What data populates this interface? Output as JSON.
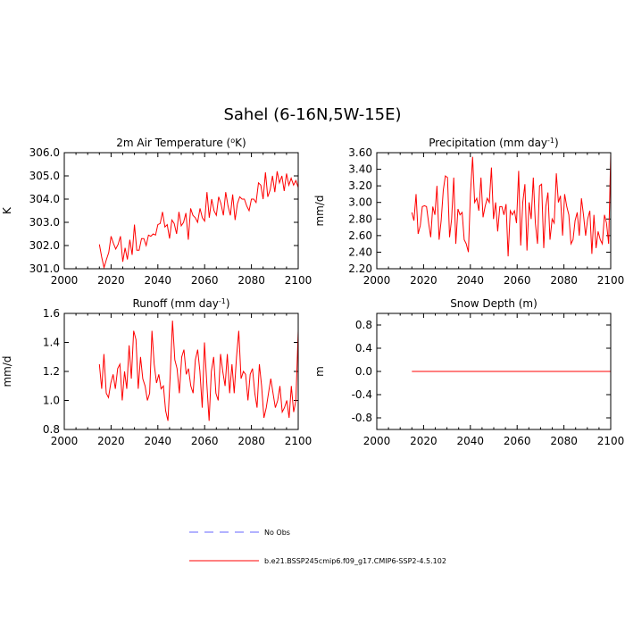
{
  "figure": {
    "title": "Sahel (6-16N,5W-15E)",
    "legend": [
      {
        "label": "No Obs",
        "color": "#6666ff",
        "style": "dashed"
      },
      {
        "label": "b.e21.BSSP245cmip6.f09_g17.CMIP6-SSP2-4.5.102",
        "color": "#ff0000",
        "style": "solid"
      }
    ]
  },
  "chart_data": [
    {
      "type": "line",
      "title": "2m Air Temperature (°K)",
      "title_parts": [
        "2m Air Temperature (",
        "o",
        "K)"
      ],
      "ylabel": "K",
      "xlim": [
        2000,
        2100
      ],
      "ylim": [
        301.0,
        306.0
      ],
      "xticks": [
        "2000",
        "2020",
        "2040",
        "2060",
        "2080",
        "2100"
      ],
      "yticks": [
        "301.0",
        "302.0",
        "303.0",
        "304.0",
        "305.0",
        "306.0"
      ],
      "series": [
        {
          "color": "#ff0000",
          "x_start": 2015,
          "y": [
            302.05,
            301.5,
            301.05,
            301.4,
            301.7,
            302.4,
            302.1,
            301.85,
            302.05,
            302.4,
            301.3,
            301.9,
            301.4,
            302.25,
            301.6,
            302.9,
            301.8,
            301.8,
            302.3,
            302.3,
            302.0,
            302.45,
            302.4,
            302.5,
            302.45,
            302.9,
            302.95,
            303.45,
            302.8,
            302.9,
            302.3,
            303.1,
            302.95,
            302.5,
            303.45,
            302.85,
            303.0,
            303.4,
            302.25,
            303.6,
            303.3,
            303.2,
            303.0,
            303.6,
            303.2,
            303.05,
            304.3,
            303.2,
            304.0,
            303.5,
            303.3,
            304.1,
            303.8,
            303.3,
            304.3,
            303.7,
            303.3,
            304.2,
            303.1,
            303.8,
            304.1,
            304.0,
            304.0,
            303.7,
            303.5,
            304.0,
            304.0,
            303.85,
            304.7,
            304.6,
            304.0,
            305.15,
            304.1,
            304.4,
            305.0,
            304.3,
            305.2,
            304.7,
            305.0,
            304.35,
            305.1,
            304.6,
            304.9,
            304.6,
            304.8,
            304.5
          ]
        }
      ]
    },
    {
      "type": "line",
      "title": "Precipitation (mm day-1)",
      "title_parts": [
        "Precipitation (mm day",
        "-1",
        ")"
      ],
      "ylabel": "mm/d",
      "xlim": [
        2000,
        2100
      ],
      "ylim": [
        2.2,
        3.6
      ],
      "xticks": [
        "2000",
        "2020",
        "2040",
        "2060",
        "2080",
        "2100"
      ],
      "yticks": [
        "2.20",
        "2.40",
        "2.60",
        "2.80",
        "3.00",
        "3.20",
        "3.40",
        "3.60"
      ],
      "series": [
        {
          "color": "#ff0000",
          "x_start": 2015,
          "y": [
            2.88,
            2.78,
            3.1,
            2.62,
            2.72,
            2.95,
            2.96,
            2.95,
            2.75,
            2.58,
            2.95,
            2.85,
            3.2,
            2.55,
            2.78,
            3.15,
            3.32,
            3.3,
            2.58,
            2.8,
            3.3,
            2.5,
            2.92,
            2.85,
            2.88,
            2.55,
            2.5,
            2.4,
            3.1,
            3.55,
            3.0,
            3.05,
            2.9,
            3.3,
            2.82,
            2.95,
            3.05,
            3.0,
            3.42,
            2.8,
            3.0,
            2.65,
            2.95,
            2.95,
            2.85,
            2.98,
            2.35,
            2.9,
            2.85,
            2.9,
            2.75,
            3.38,
            2.48,
            3.0,
            3.22,
            2.42,
            3.0,
            2.8,
            3.3,
            2.75,
            2.5,
            3.2,
            3.22,
            2.45,
            2.95,
            3.12,
            2.55,
            2.8,
            2.75,
            3.35,
            3.0,
            3.08,
            2.6,
            3.1,
            2.95,
            2.85,
            2.5,
            2.55,
            2.78,
            2.88,
            2.6,
            3.05,
            2.85,
            2.6,
            2.8,
            2.9,
            2.38,
            2.85,
            2.45,
            2.65,
            2.55,
            2.5,
            2.85,
            2.75,
            2.5,
            3.58
          ]
        }
      ]
    },
    {
      "type": "line",
      "title": "Runoff (mm day-1)",
      "title_parts": [
        "Runoff (mm day",
        "-1",
        ")"
      ],
      "ylabel": "mm/d",
      "xlim": [
        2000,
        2100
      ],
      "ylim": [
        0.8,
        1.6
      ],
      "xticks": [
        "2000",
        "2020",
        "2040",
        "2060",
        "2080",
        "2100"
      ],
      "yticks": [
        "0.8",
        "1.0",
        "1.2",
        "1.4",
        "1.6"
      ],
      "series": [
        {
          "color": "#ff0000",
          "x_start": 2015,
          "y": [
            1.25,
            1.08,
            1.32,
            1.05,
            1.02,
            1.12,
            1.18,
            1.08,
            1.22,
            1.25,
            1.0,
            1.2,
            1.08,
            1.38,
            1.15,
            1.48,
            1.42,
            1.08,
            1.3,
            1.15,
            1.1,
            1.0,
            1.05,
            1.48,
            1.25,
            1.12,
            1.18,
            1.08,
            1.1,
            0.93,
            0.86,
            1.18,
            1.55,
            1.28,
            1.22,
            1.05,
            1.3,
            1.35,
            1.18,
            1.22,
            1.1,
            1.05,
            1.28,
            1.35,
            1.2,
            0.95,
            1.4,
            1.12,
            0.86,
            1.2,
            1.3,
            1.05,
            1.0,
            1.32,
            1.2,
            1.1,
            1.32,
            1.05,
            1.25,
            1.05,
            1.3,
            1.48,
            1.15,
            1.2,
            1.18,
            1.0,
            1.18,
            1.22,
            1.05,
            0.95,
            1.25,
            1.1,
            0.88,
            0.95,
            1.05,
            1.15,
            1.05,
            0.95,
            1.0,
            1.1,
            0.92,
            0.95,
            1.0,
            0.88,
            1.1,
            0.92,
            1.0,
            1.48
          ]
        }
      ]
    },
    {
      "type": "line",
      "title": "Snow Depth (m)",
      "title_parts": [
        "Snow Depth (m)",
        "",
        ""
      ],
      "ylabel": "m",
      "xlim": [
        2000,
        2100
      ],
      "ylim": [
        -1.0,
        1.0
      ],
      "xticks": [
        "2000",
        "2020",
        "2040",
        "2060",
        "2080",
        "2100"
      ],
      "yticks": [
        "-0.8",
        "-0.4",
        "0.0",
        "0.4",
        "0.8"
      ],
      "yticks_at": [
        -0.8,
        -0.4,
        0.0,
        0.4,
        0.8
      ],
      "series": [
        {
          "color": "#ff0000",
          "x_start": 2015,
          "constant": 0.0,
          "x_end": 2100
        }
      ]
    }
  ]
}
